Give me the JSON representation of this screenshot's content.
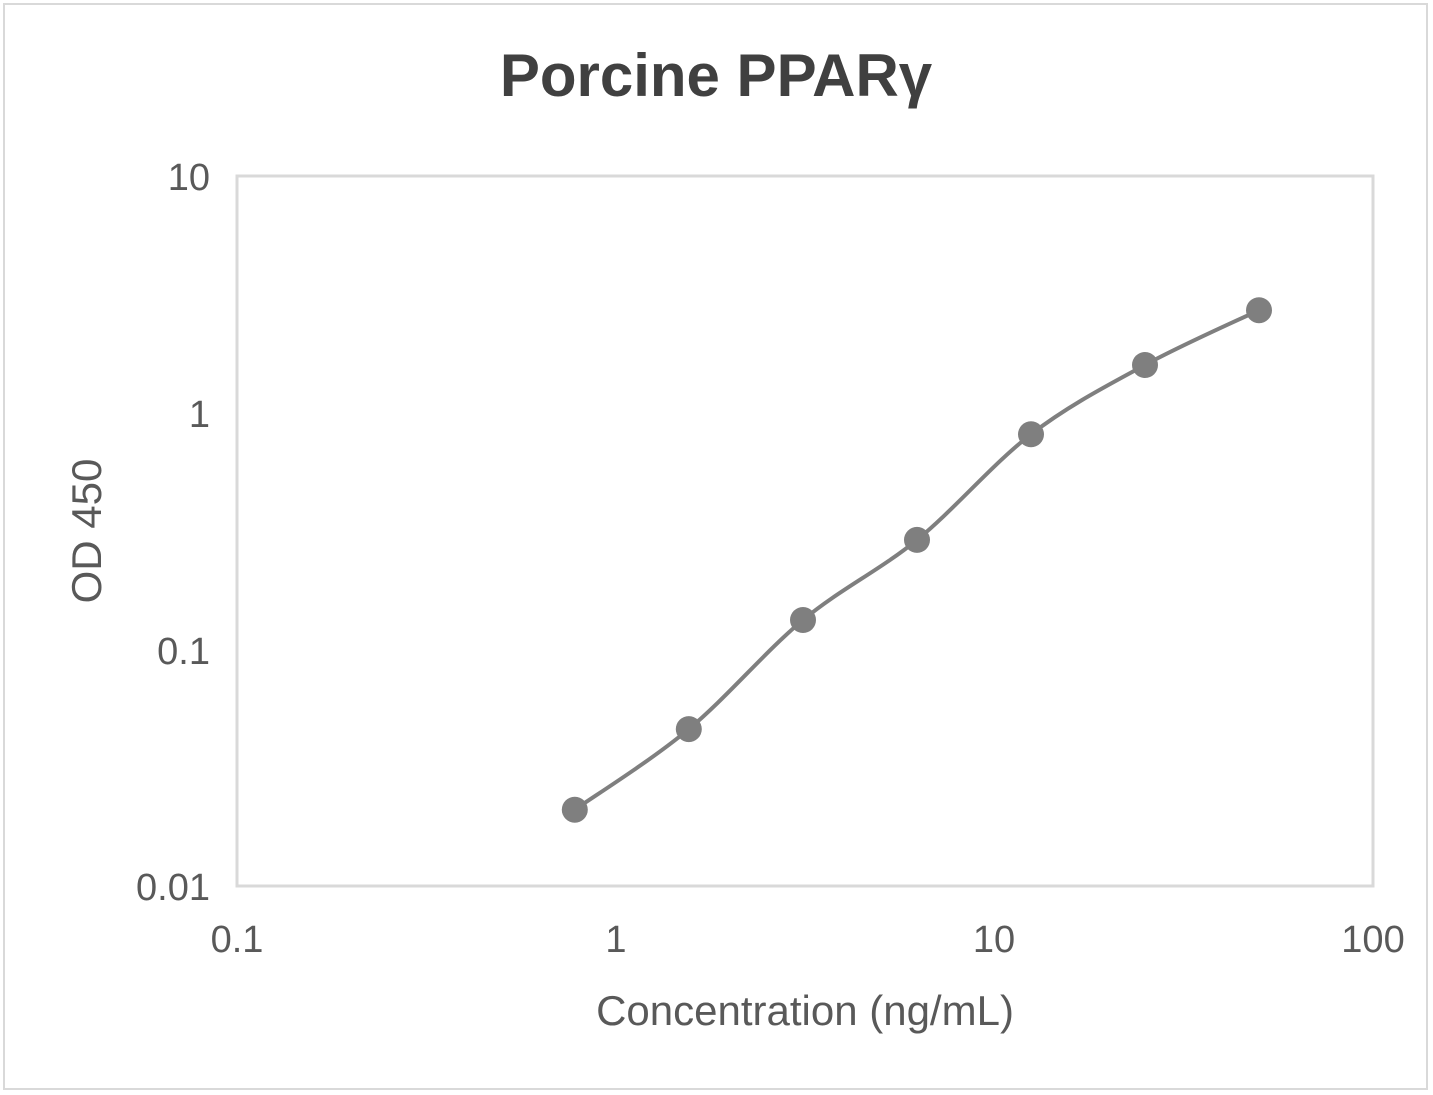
{
  "chart_data": {
    "type": "scatter",
    "title": "Porcine PPARγ",
    "xlabel": "Concentration (ng/mL)",
    "ylabel": "OD 450",
    "xscale": "log",
    "yscale": "log",
    "xlim": [
      0.1,
      100
    ],
    "ylim": [
      0.01,
      10
    ],
    "x_ticks": [
      "0.1",
      "1",
      "10",
      "100"
    ],
    "y_ticks": [
      "0.01",
      "0.1",
      "1",
      "10"
    ],
    "grid": false,
    "legend": null,
    "line": "smoothed",
    "series": [
      {
        "name": "Porcine PPARγ",
        "color": "#7f7f7f",
        "x": [
          0.78,
          1.56,
          3.125,
          6.25,
          12.5,
          25,
          50
        ],
        "y": [
          0.021,
          0.046,
          0.133,
          0.29,
          0.81,
          1.59,
          2.71
        ]
      }
    ]
  },
  "style": {
    "series_color": "#7f7f7f",
    "title_color": "#404040",
    "text_color": "#595959",
    "axis_color": "#d9d9d9"
  }
}
